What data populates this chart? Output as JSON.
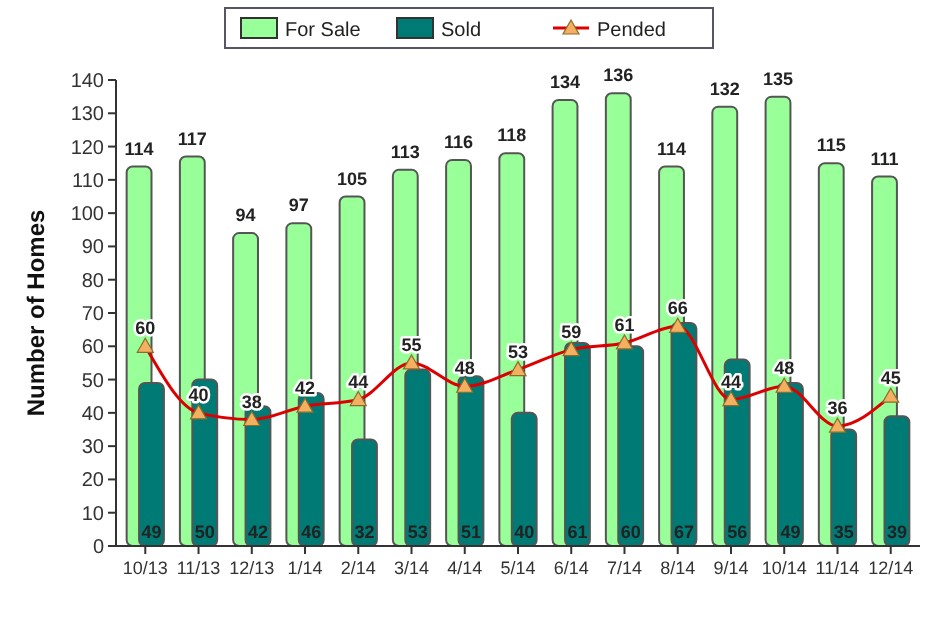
{
  "chart_data": {
    "type": "bar",
    "ylabel": "Number of Homes",
    "categories": [
      "10/13",
      "11/13",
      "12/13",
      "1/14",
      "2/14",
      "3/14",
      "4/14",
      "5/14",
      "6/14",
      "7/14",
      "8/14",
      "9/14",
      "10/14",
      "11/14",
      "12/14"
    ],
    "series": [
      {
        "name": "For Sale",
        "color": "#99ff99",
        "values": [
          114,
          117,
          94,
          97,
          105,
          113,
          116,
          118,
          134,
          136,
          114,
          132,
          135,
          115,
          111
        ]
      },
      {
        "name": "Sold",
        "color": "#007a74",
        "values": [
          49,
          50,
          42,
          46,
          32,
          53,
          51,
          40,
          61,
          60,
          67,
          56,
          49,
          35,
          39
        ]
      },
      {
        "name": "Pended",
        "type": "line",
        "color": "#dd0000",
        "marker": "triangle",
        "values": [
          60,
          40,
          38,
          42,
          44,
          55,
          48,
          53,
          59,
          61,
          66,
          44,
          48,
          36,
          45
        ]
      }
    ],
    "ylim": [
      0,
      140
    ],
    "yticks": [
      0,
      10,
      20,
      30,
      40,
      50,
      60,
      70,
      80,
      90,
      100,
      110,
      120,
      130,
      140
    ],
    "data_labels": true,
    "legend": "top",
    "grid": false
  }
}
